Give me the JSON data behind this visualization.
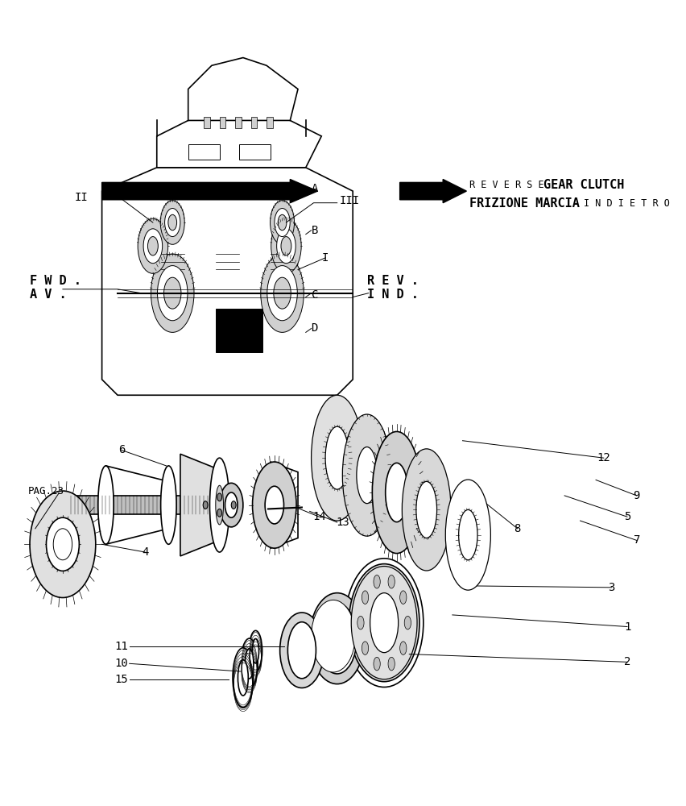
{
  "bg_color": "#ffffff",
  "line_color": "#000000",
  "figsize": [
    8.52,
    10.0
  ],
  "dpi": 100,
  "reverse_label1": "R E V E R S E",
  "reverse_label2": "GEAR CLUTCH",
  "frizione_label1": "FRIZIONE MARCIA",
  "frizione_label2": "I N D I E T R O",
  "fwd_line1": "F W D .",
  "fwd_line2": "A V .",
  "rev_line1": "R E V .",
  "rev_line2": "I N D .",
  "pag_label": "PAG.23",
  "diagram_labels": [
    "A",
    "B",
    "I",
    "C",
    "D",
    "II",
    "III"
  ],
  "part_numbers": [
    "1",
    "2",
    "3",
    "4",
    "5",
    "6",
    "7",
    "8",
    "9",
    "10",
    "11",
    "12",
    "13",
    "14",
    "15"
  ]
}
